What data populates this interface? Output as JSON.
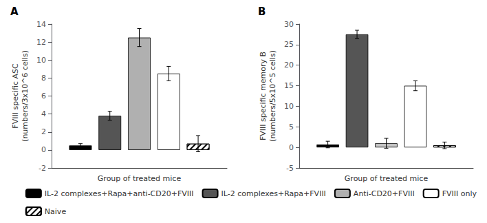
{
  "chart_data": [
    {
      "type": "bar",
      "title": "A",
      "xlabel": "Group of treated mice",
      "ylabel": "FVIII specific ASC\n(numbers/3x10^6 cells)",
      "categories": [
        null
      ],
      "series": [
        {
          "name": "IL-2 complexes+Rapa+anti-CD20+FVIII",
          "color": "#000000",
          "values": [
            0.5
          ],
          "errors": [
            0.2
          ]
        },
        {
          "name": "IL-2 complexes+Rapa+FVIII",
          "color": "#555555",
          "values": [
            3.8
          ],
          "errors": [
            0.5
          ]
        },
        {
          "name": "Anti-CD20+FVIII",
          "color": "#b0b0b0",
          "values": [
            12.5
          ],
          "errors": [
            1.0
          ]
        },
        {
          "name": "FVIII only",
          "color": "#ffffff",
          "values": [
            8.5
          ],
          "errors": [
            0.8
          ]
        },
        {
          "name": "Naive",
          "color": "#ffffff",
          "values": [
            0.7
          ],
          "errors": [
            0.9
          ]
        }
      ],
      "ylim": [
        -2,
        14
      ],
      "yticks": [
        -2,
        0,
        2,
        4,
        6,
        8,
        10,
        12,
        14
      ],
      "tick_labels": "y",
      "legend": "lower right"
    },
    {
      "type": "bar",
      "title": "B",
      "xlabel": "Group of treated mice",
      "ylabel": "FVIII specific memory B\n(numbers/5x10^5 cells)",
      "categories": [
        null
      ],
      "series": [
        {
          "name": "IL-2 complexes+Rapa+anti-CD20+FVIII",
          "color": "#000000",
          "values": [
            0.7
          ],
          "errors": [
            0.8
          ]
        },
        {
          "name": "IL-2 complexes+Rapa+FVIII",
          "color": "#555555",
          "values": [
            27.5
          ],
          "errors": [
            1.0
          ]
        },
        {
          "name": "Anti-CD20+FVIII",
          "color": "#c8c8c8",
          "values": [
            1.0
          ],
          "errors": [
            1.2
          ]
        },
        {
          "name": "FVIII only",
          "color": "#ffffff",
          "values": [
            15.0
          ],
          "errors": [
            1.2
          ]
        },
        {
          "name": "Naive",
          "color": "#ffffff",
          "values": [
            0.5
          ],
          "errors": [
            0.8
          ]
        }
      ],
      "ylim": [
        -5,
        30
      ],
      "yticks": [
        -5,
        0,
        5,
        10,
        15,
        20,
        25,
        30
      ],
      "tick_labels": "y",
      "legend": "lower right"
    }
  ]
}
